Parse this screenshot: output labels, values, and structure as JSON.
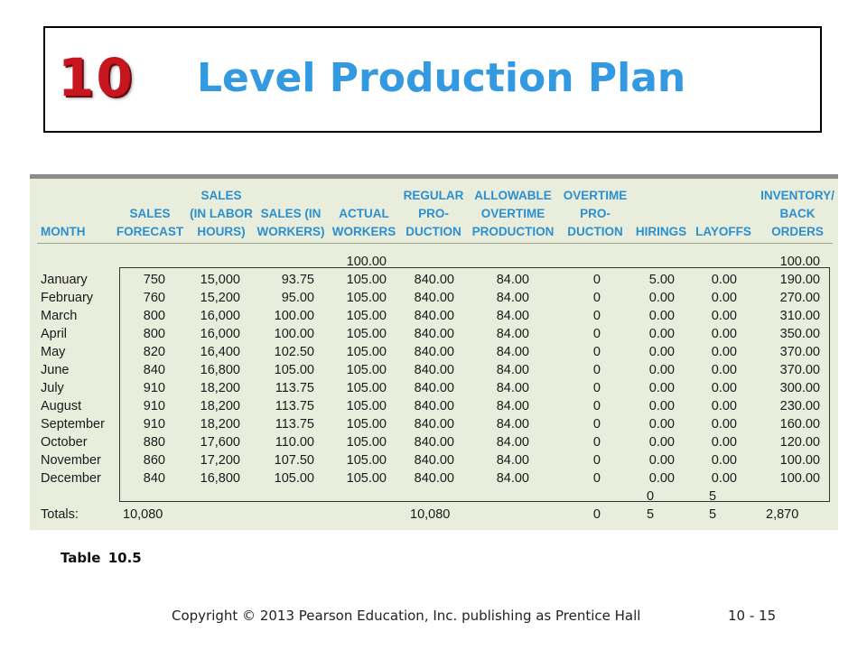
{
  "slide": {
    "chapter_number": "10",
    "title": "Level Production Plan",
    "caption": "Table 10.5",
    "copyright": "Copyright © 2013 Pearson Education, Inc. publishing as Prentice Hall",
    "page_number": "10 - 15"
  },
  "table": {
    "headers": [
      "MONTH",
      "SALES\nFORECAST",
      "SALES\n(IN LABOR\nHOURS)",
      "SALES (IN\nWORKERS)",
      "ACTUAL\nWORKERS",
      "REGULAR\nPRO-\nDUCTION",
      "ALLOWABLE\nOVERTIME\nPRODUCTION",
      "OVERTIME\nPRO-\nDUCTION",
      "HIRINGS",
      "LAYOFFS",
      "INVENTORY/\nBACK\nORDERS"
    ],
    "rows": [
      [
        "",
        "",
        "",
        "",
        "100.00",
        "",
        "",
        "",
        "",
        "",
        "100.00"
      ],
      [
        "January",
        "750",
        "15,000",
        "93.75",
        "105.00",
        "840.00",
        "84.00",
        "0",
        "5.00",
        "0.00",
        "190.00"
      ],
      [
        "February",
        "760",
        "15,200",
        "95.00",
        "105.00",
        "840.00",
        "84.00",
        "0",
        "0.00",
        "0.00",
        "270.00"
      ],
      [
        "March",
        "800",
        "16,000",
        "100.00",
        "105.00",
        "840.00",
        "84.00",
        "0",
        "0.00",
        "0.00",
        "310.00"
      ],
      [
        "April",
        "800",
        "16,000",
        "100.00",
        "105.00",
        "840.00",
        "84.00",
        "0",
        "0.00",
        "0.00",
        "350.00"
      ],
      [
        "May",
        "820",
        "16,400",
        "102.50",
        "105.00",
        "840.00",
        "84.00",
        "0",
        "0.00",
        "0.00",
        "370.00"
      ],
      [
        "June",
        "840",
        "16,800",
        "105.00",
        "105.00",
        "840.00",
        "84.00",
        "0",
        "0.00",
        "0.00",
        "370.00"
      ],
      [
        "July",
        "910",
        "18,200",
        "113.75",
        "105.00",
        "840.00",
        "84.00",
        "0",
        "0.00",
        "0.00",
        "300.00"
      ],
      [
        "August",
        "910",
        "18,200",
        "113.75",
        "105.00",
        "840.00",
        "84.00",
        "0",
        "0.00",
        "0.00",
        "230.00"
      ],
      [
        "September",
        "910",
        "18,200",
        "113.75",
        "105.00",
        "840.00",
        "84.00",
        "0",
        "0.00",
        "0.00",
        "160.00"
      ],
      [
        "October",
        "880",
        "17,600",
        "110.00",
        "105.00",
        "840.00",
        "84.00",
        "0",
        "0.00",
        "0.00",
        "120.00"
      ],
      [
        "November",
        "860",
        "17,200",
        "107.50",
        "105.00",
        "840.00",
        "84.00",
        "0",
        "0.00",
        "0.00",
        "100.00"
      ],
      [
        "December",
        "840",
        "16,800",
        "105.00",
        "105.00",
        "840.00",
        "84.00",
        "0",
        "0.00",
        "0.00",
        "100.00"
      ],
      [
        "",
        "",
        "",
        "",
        "",
        "",
        "",
        "",
        "0",
        "5",
        ""
      ],
      [
        "Totals:",
        "10,080",
        "",
        "",
        "",
        "10,080",
        "",
        "0",
        "5",
        "5",
        "2,870"
      ]
    ]
  },
  "colors": {
    "title_blue": "#3399e0",
    "chapter_red": "#c8161e",
    "header_blue": "#2b8fd1",
    "table_background": "#e8eedb"
  }
}
